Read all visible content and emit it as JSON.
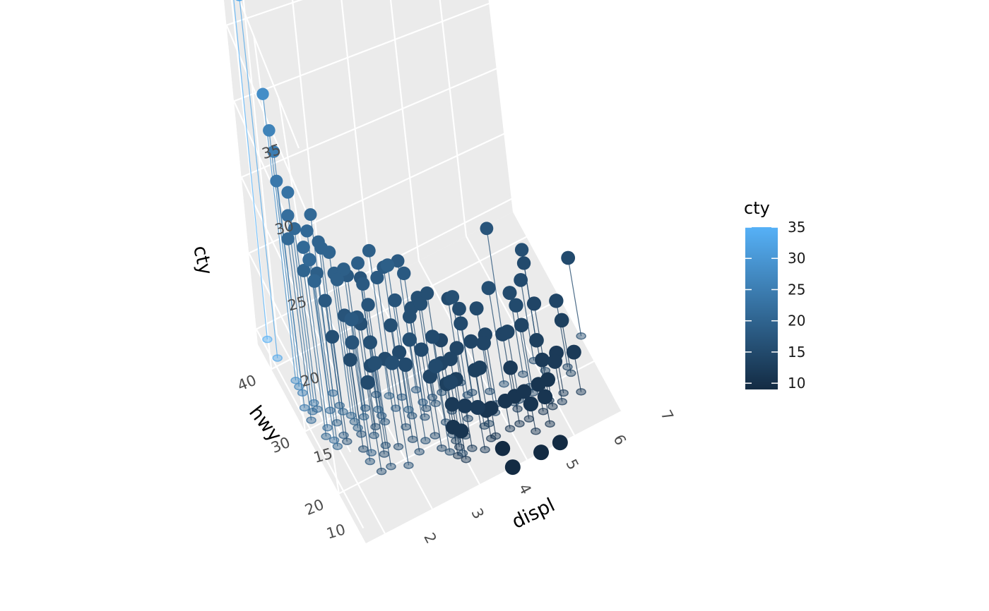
{
  "chart_data": {
    "type": "scatter",
    "variant": "3d-scatter-with-drop-lines",
    "title": "",
    "xlabel": "displ",
    "ylabel": "hwy",
    "zlabel": "cty",
    "xlim": [
      1.6,
      7.0
    ],
    "ylim": [
      12,
      44
    ],
    "zlim": [
      9,
      35
    ],
    "x_ticks": [
      "2",
      "3",
      "4",
      "5",
      "6",
      "7"
    ],
    "y_ticks": [
      "20",
      "30",
      "40"
    ],
    "z_ticks": [
      "10",
      "15",
      "20",
      "25",
      "30",
      "35"
    ],
    "grid": true,
    "panel_color": "#ebebeb",
    "grid_color": "#ffffff",
    "legend": {
      "title": "cty",
      "position": "right",
      "labels": [
        "35",
        "30",
        "25",
        "20",
        "15",
        "10"
      ],
      "color_low": "#132b43",
      "color_high": "#56b1f7",
      "range": [
        9,
        35
      ]
    },
    "points": [
      {
        "displ": 1.8,
        "hwy": 44,
        "cty": 35
      },
      {
        "displ": 1.8,
        "hwy": 41,
        "cty": 33
      },
      {
        "displ": 1.9,
        "hwy": 37,
        "cty": 28
      },
      {
        "displ": 1.9,
        "hwy": 36,
        "cty": 26
      },
      {
        "displ": 1.9,
        "hwy": 35,
        "cty": 25
      },
      {
        "displ": 1.8,
        "hwy": 33,
        "cty": 24
      },
      {
        "displ": 2.0,
        "hwy": 33,
        "cty": 23
      },
      {
        "displ": 1.9,
        "hwy": 32,
        "cty": 22
      },
      {
        "displ": 2.0,
        "hwy": 32,
        "cty": 21
      },
      {
        "displ": 1.8,
        "hwy": 31,
        "cty": 21
      },
      {
        "displ": 2.2,
        "hwy": 31,
        "cty": 21
      },
      {
        "displ": 2.4,
        "hwy": 33,
        "cty": 21
      },
      {
        "displ": 2.4,
        "hwy": 31,
        "cty": 20
      },
      {
        "displ": 2.0,
        "hwy": 29,
        "cty": 21
      },
      {
        "displ": 2.5,
        "hwy": 29,
        "cty": 20
      },
      {
        "displ": 2.5,
        "hwy": 28,
        "cty": 19
      },
      {
        "displ": 2.2,
        "hwy": 29,
        "cty": 19
      },
      {
        "displ": 2.4,
        "hwy": 30,
        "cty": 20
      },
      {
        "displ": 2.5,
        "hwy": 27,
        "cty": 19
      },
      {
        "displ": 2.7,
        "hwy": 28,
        "cty": 19
      },
      {
        "displ": 2.8,
        "hwy": 29,
        "cty": 18
      },
      {
        "displ": 3.0,
        "hwy": 28,
        "cty": 19
      },
      {
        "displ": 3.0,
        "hwy": 27,
        "cty": 18
      },
      {
        "displ": 3.3,
        "hwy": 29,
        "cty": 19
      },
      {
        "displ": 3.3,
        "hwy": 27,
        "cty": 18
      },
      {
        "displ": 3.5,
        "hwy": 26,
        "cty": 19
      },
      {
        "displ": 3.5,
        "hwy": 28,
        "cty": 18
      },
      {
        "displ": 3.8,
        "hwy": 26,
        "cty": 18
      },
      {
        "displ": 3.8,
        "hwy": 28,
        "cty": 18
      },
      {
        "displ": 3.1,
        "hwy": 30,
        "cty": 17
      },
      {
        "displ": 2.2,
        "hwy": 26,
        "cty": 16
      },
      {
        "displ": 2.4,
        "hwy": 24,
        "cty": 15
      },
      {
        "displ": 2.5,
        "hwy": 26,
        "cty": 17
      },
      {
        "displ": 2.7,
        "hwy": 25,
        "cty": 17
      },
      {
        "displ": 2.8,
        "hwy": 26,
        "cty": 16
      },
      {
        "displ": 3.0,
        "hwy": 26,
        "cty": 17
      },
      {
        "displ": 3.3,
        "hwy": 24,
        "cty": 16
      },
      {
        "displ": 3.5,
        "hwy": 25,
        "cty": 17
      },
      {
        "displ": 3.7,
        "hwy": 24,
        "cty": 16
      },
      {
        "displ": 3.8,
        "hwy": 25,
        "cty": 16
      },
      {
        "displ": 4.0,
        "hwy": 26,
        "cty": 16
      },
      {
        "displ": 4.0,
        "hwy": 25,
        "cty": 16
      },
      {
        "displ": 4.2,
        "hwy": 26,
        "cty": 16
      },
      {
        "displ": 4.6,
        "hwy": 26,
        "cty": 15
      },
      {
        "displ": 4.7,
        "hwy": 24,
        "cty": 15
      },
      {
        "displ": 2.5,
        "hwy": 20,
        "cty": 15
      },
      {
        "displ": 2.7,
        "hwy": 22,
        "cty": 15
      },
      {
        "displ": 3.0,
        "hwy": 22,
        "cty": 15
      },
      {
        "displ": 3.3,
        "hwy": 22,
        "cty": 15
      },
      {
        "displ": 3.7,
        "hwy": 21,
        "cty": 15
      },
      {
        "displ": 4.0,
        "hwy": 22,
        "cty": 15
      },
      {
        "displ": 4.0,
        "hwy": 20,
        "cty": 14
      },
      {
        "displ": 4.2,
        "hwy": 23,
        "cty": 14
      },
      {
        "displ": 4.6,
        "hwy": 22,
        "cty": 15
      },
      {
        "displ": 4.7,
        "hwy": 21,
        "cty": 14
      },
      {
        "displ": 4.7,
        "hwy": 19,
        "cty": 13
      },
      {
        "displ": 4.9,
        "hwy": 20,
        "cty": 14
      },
      {
        "displ": 5.0,
        "hwy": 21,
        "cty": 14
      },
      {
        "displ": 5.3,
        "hwy": 20,
        "cty": 14
      },
      {
        "displ": 5.4,
        "hwy": 20,
        "cty": 14
      },
      {
        "displ": 5.7,
        "hwy": 20,
        "cty": 14
      },
      {
        "displ": 5.7,
        "hwy": 23,
        "cty": 15
      },
      {
        "displ": 5.9,
        "hwy": 19,
        "cty": 13
      },
      {
        "displ": 6.1,
        "hwy": 22,
        "cty": 14
      },
      {
        "displ": 6.2,
        "hwy": 26,
        "cty": 16
      },
      {
        "displ": 6.5,
        "hwy": 21,
        "cty": 14
      },
      {
        "displ": 7.0,
        "hwy": 24,
        "cty": 15
      },
      {
        "displ": 5.7,
        "hwy": 29,
        "cty": 17
      },
      {
        "displ": 6.2,
        "hwy": 26,
        "cty": 15
      },
      {
        "displ": 6.0,
        "hwy": 24,
        "cty": 15
      },
      {
        "displ": 6.5,
        "hwy": 20,
        "cty": 13
      },
      {
        "displ": 4.7,
        "hwy": 17,
        "cty": 11
      },
      {
        "displ": 5.0,
        "hwy": 17,
        "cty": 11
      },
      {
        "displ": 5.2,
        "hwy": 17,
        "cty": 11
      },
      {
        "displ": 5.4,
        "hwy": 17,
        "cty": 11
      },
      {
        "displ": 5.7,
        "hwy": 17,
        "cty": 11
      },
      {
        "displ": 4.7,
        "hwy": 15,
        "cty": 9
      },
      {
        "displ": 5.9,
        "hwy": 17,
        "cty": 11
      },
      {
        "displ": 4.7,
        "hwy": 12,
        "cty": 9
      },
      {
        "displ": 5.3,
        "hwy": 12,
        "cty": 9
      },
      {
        "displ": 5.7,
        "hwy": 12,
        "cty": 9
      },
      {
        "displ": 4.0,
        "hwy": 18,
        "cty": 12
      },
      {
        "displ": 4.2,
        "hwy": 17,
        "cty": 12
      },
      {
        "displ": 4.6,
        "hwy": 17,
        "cty": 11
      },
      {
        "displ": 4.0,
        "hwy": 16,
        "cty": 11
      },
      {
        "displ": 3.9,
        "hwy": 17,
        "cty": 11
      },
      {
        "displ": 4.4,
        "hwy": 16,
        "cty": 12
      },
      {
        "displ": 4.6,
        "hwy": 19,
        "cty": 13
      },
      {
        "displ": 3.7,
        "hwy": 19,
        "cty": 14
      },
      {
        "displ": 4.0,
        "hwy": 19,
        "cty": 13
      },
      {
        "displ": 4.2,
        "hwy": 19,
        "cty": 13
      },
      {
        "displ": 5.4,
        "hwy": 15,
        "cty": 11
      },
      {
        "displ": 5.7,
        "hwy": 15,
        "cty": 11
      },
      {
        "displ": 6.1,
        "hwy": 17,
        "cty": 12
      },
      {
        "displ": 6.5,
        "hwy": 17,
        "cty": 12
      },
      {
        "displ": 5.3,
        "hwy": 19,
        "cty": 12
      },
      {
        "displ": 5.9,
        "hwy": 18,
        "cty": 12
      },
      {
        "displ": 6.2,
        "hwy": 18,
        "cty": 12
      },
      {
        "displ": 2.7,
        "hwy": 20,
        "cty": 16
      },
      {
        "displ": 3.0,
        "hwy": 19,
        "cty": 16
      },
      {
        "displ": 3.8,
        "hwy": 18,
        "cty": 15
      },
      {
        "displ": 4.0,
        "hwy": 17,
        "cty": 14
      },
      {
        "displ": 2.4,
        "hwy": 22,
        "cty": 17
      },
      {
        "displ": 2.5,
        "hwy": 23,
        "cty": 18
      },
      {
        "displ": 1.9,
        "hwy": 28,
        "cty": 20
      },
      {
        "displ": 2.0,
        "hwy": 27,
        "cty": 21
      },
      {
        "displ": 2.0,
        "hwy": 26,
        "cty": 20
      },
      {
        "displ": 2.2,
        "hwy": 27,
        "cty": 18
      },
      {
        "displ": 2.8,
        "hwy": 23,
        "cty": 16
      },
      {
        "displ": 3.3,
        "hwy": 20,
        "cty": 15
      },
      {
        "displ": 3.5,
        "hwy": 21,
        "cty": 16
      },
      {
        "displ": 4.2,
        "hwy": 20,
        "cty": 14
      },
      {
        "displ": 4.4,
        "hwy": 21,
        "cty": 14
      },
      {
        "displ": 4.6,
        "hwy": 24,
        "cty": 16
      },
      {
        "displ": 5.0,
        "hwy": 23,
        "cty": 15
      },
      {
        "displ": 5.3,
        "hwy": 23,
        "cty": 16
      },
      {
        "displ": 5.7,
        "hwy": 21,
        "cty": 15
      }
    ]
  }
}
